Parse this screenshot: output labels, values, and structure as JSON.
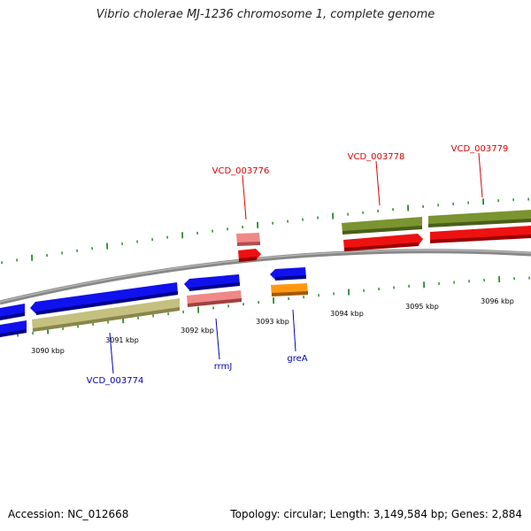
{
  "title": "Vibrio cholerae MJ-1236 chromosome 1, complete genome",
  "footer": {
    "accession": "Accession: NC_012668",
    "summary": "Topology: circular; Length: 3,149,584 bp; Genes: 2,884"
  },
  "colors": {
    "forward_cds": "#ee1111",
    "forward_other": "#f08888",
    "forward_track2": "#7a9430",
    "reverse_cds": "#1111ee",
    "reverse_track2": "#c4c080",
    "reverse_rna": "#f08888",
    "reverse_orange": "#ff9912",
    "backbone": "#888888",
    "tick": "#2a8a2a",
    "label_forward": "#dd0000",
    "label_reverse": "#0000bb"
  },
  "kbp_labels": [
    "3090 kbp",
    "3091 kbp",
    "3092 kbp",
    "3093 kbp",
    "3094 kbp",
    "3095 kbp",
    "3096 kbp"
  ],
  "gene_labels": {
    "vcd_003776": "VCD_003776",
    "vcd_003778": "VCD_003778",
    "vcd_003779": "VCD_003779",
    "vcd_003774": "VCD_003774",
    "rrmj": "rrmJ",
    "grea": "greA"
  }
}
